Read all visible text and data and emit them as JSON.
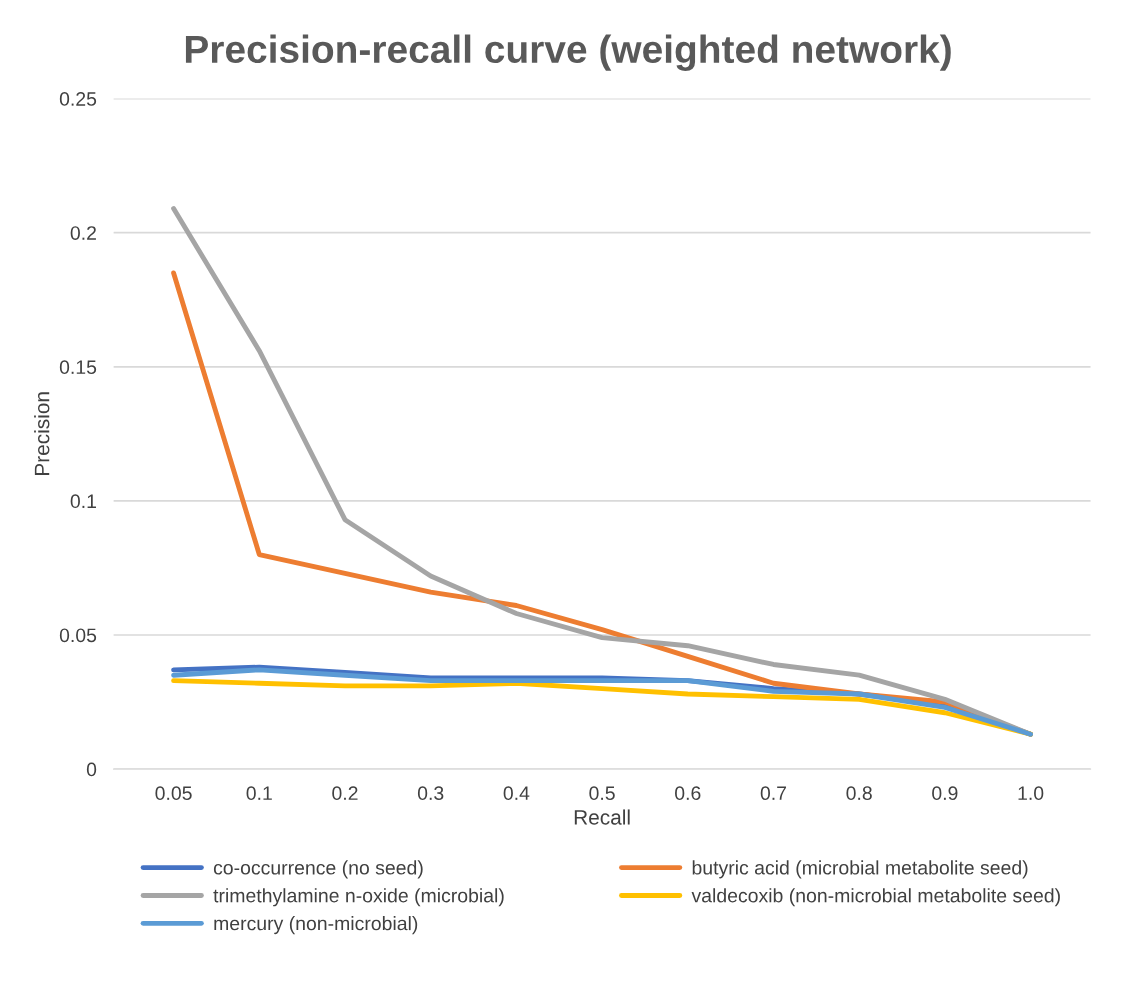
{
  "chart_data": {
    "type": "line",
    "title": "Precision-recall curve (weighted network)",
    "xlabel": "Recall",
    "ylabel": "Precision",
    "categories": [
      "0.05",
      "0.1",
      "0.2",
      "0.3",
      "0.4",
      "0.5",
      "0.6",
      "0.7",
      "0.8",
      "0.9",
      "1.0"
    ],
    "ylim": [
      0,
      0.25
    ],
    "yticks": [
      0,
      0.05,
      0.1,
      0.15,
      0.2,
      0.25
    ],
    "grid": "y",
    "legend": "bottom",
    "marker": "none",
    "line_style": "solid",
    "series": [
      {
        "name": "co-occurrence (no seed)",
        "color": "#4472c4",
        "values": [
          0.037,
          0.038,
          0.036,
          0.034,
          0.034,
          0.034,
          0.033,
          0.03,
          0.028,
          0.024,
          0.013
        ]
      },
      {
        "name": "butyric acid (microbial metabolite seed)",
        "color": "#ed7d31",
        "values": [
          0.185,
          0.08,
          0.073,
          0.066,
          0.061,
          0.052,
          0.042,
          0.032,
          0.028,
          0.025,
          0.013
        ]
      },
      {
        "name": "trimethylamine n-oxide (microbial)",
        "color": "#a5a5a5",
        "values": [
          0.209,
          0.156,
          0.093,
          0.072,
          0.058,
          0.049,
          0.046,
          0.039,
          0.035,
          0.026,
          0.013
        ]
      },
      {
        "name": "valdecoxib (non-microbial metabolite seed)",
        "color": "#ffc000",
        "values": [
          0.033,
          0.032,
          0.031,
          0.031,
          0.032,
          0.03,
          0.028,
          0.027,
          0.026,
          0.021,
          0.013
        ]
      },
      {
        "name": "mercury (non-microbial)",
        "color": "#5b9bd5",
        "values": [
          0.035,
          0.037,
          0.035,
          0.033,
          0.033,
          0.033,
          0.033,
          0.029,
          0.028,
          0.023,
          0.013
        ]
      }
    ]
  }
}
